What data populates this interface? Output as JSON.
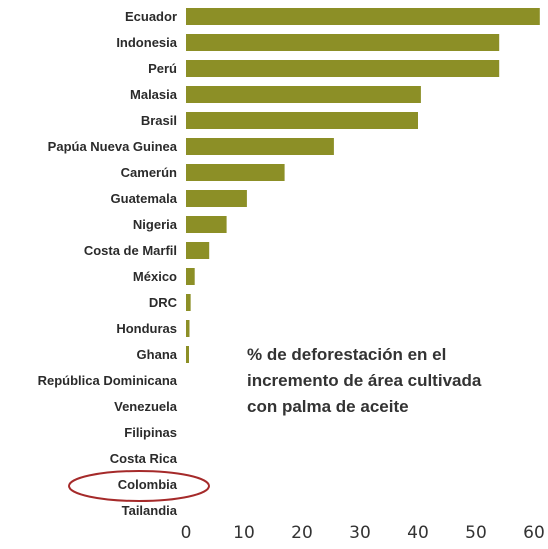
{
  "chart_data": {
    "type": "bar",
    "orientation": "horizontal",
    "categories": [
      "Ecuador",
      "Indonesia",
      "Perú",
      "Malasia",
      "Brasil",
      "Papúa Nueva Guinea",
      "Camerún",
      "Guatemala",
      "Nigeria",
      "Costa de Marfil",
      "México",
      "DRC",
      "Honduras",
      "Ghana",
      "República Dominicana",
      "Venezuela",
      "Filipinas",
      "Costa Rica",
      "Colombia",
      "Tailandia"
    ],
    "values": [
      61,
      54,
      54,
      40.5,
      40,
      25.5,
      17,
      10.5,
      7,
      4,
      1.5,
      0.8,
      0.6,
      0.5,
      0,
      0,
      0,
      0,
      0,
      0
    ],
    "xlim": [
      0,
      60
    ],
    "xticks": [
      0,
      10,
      20,
      30,
      40,
      50,
      60
    ],
    "title": "",
    "xlabel": "",
    "ylabel": "",
    "grid": false,
    "bar_color": "#8c8f26",
    "highlight": {
      "category": "Colombia",
      "color": "#a52a2a",
      "shape": "ellipse"
    }
  },
  "annotation": {
    "text": "% de deforestación en el\nincremento de área cultivada\ncon palma de aceite"
  }
}
